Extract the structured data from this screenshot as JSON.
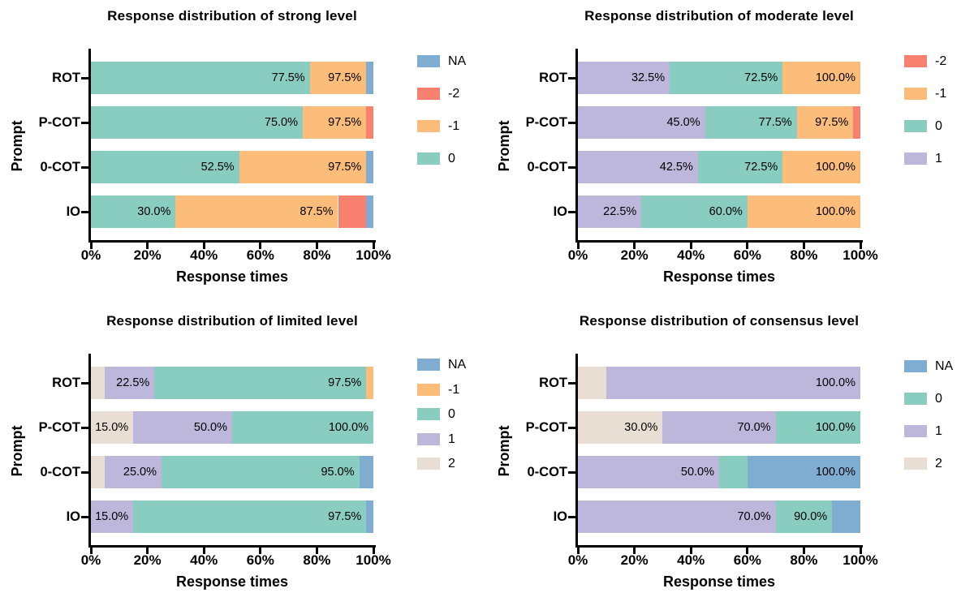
{
  "figure": {
    "background": "#ffffff",
    "text_color": "#000000",
    "axis_color": "#000000"
  },
  "colors": {
    "NA": "#7FACD1",
    "-2": "#F8806E",
    "-1": "#FCBD7B",
    "0": "#89CDC0",
    "1": "#BDB7DC",
    "2": "#E9DED3"
  },
  "chart_data": [
    {
      "type": "bar",
      "orientation": "horizontal",
      "stacked": true,
      "title": "Response distribution of strong level",
      "xlabel": "Response times",
      "ylabel": "Prompt",
      "xlim": [
        0,
        100
      ],
      "x_ticks": [
        "0%",
        "20%",
        "40%",
        "60%",
        "80%",
        "100%"
      ],
      "grid": false,
      "legend_position": "right",
      "legend": [
        "NA",
        "-2",
        "-1",
        "0"
      ],
      "categories": [
        "ROT",
        "P-COT",
        "0-COT",
        "IO"
      ],
      "rows": [
        {
          "category": "ROT",
          "segments": [
            {
              "series": "0",
              "start": 0,
              "end": 77.5,
              "label": "77.5%"
            },
            {
              "series": "-1",
              "start": 77.5,
              "end": 97.5,
              "label": "97.5%"
            },
            {
              "series": "NA",
              "start": 97.5,
              "end": 100
            }
          ]
        },
        {
          "category": "P-COT",
          "segments": [
            {
              "series": "0",
              "start": 0,
              "end": 75,
              "label": "75.0%"
            },
            {
              "series": "-1",
              "start": 75,
              "end": 97.5,
              "label": "97.5%"
            },
            {
              "series": "-2",
              "start": 97.5,
              "end": 100
            }
          ]
        },
        {
          "category": "0-COT",
          "segments": [
            {
              "series": "0",
              "start": 0,
              "end": 52.5,
              "label": "52.5%"
            },
            {
              "series": "-1",
              "start": 52.5,
              "end": 97.5,
              "label": "97.5%"
            },
            {
              "series": "NA",
              "start": 97.5,
              "end": 100
            }
          ]
        },
        {
          "category": "IO",
          "segments": [
            {
              "series": "0",
              "start": 0,
              "end": 30,
              "label": "30.0%"
            },
            {
              "series": "-1",
              "start": 30,
              "end": 87.5,
              "label": "87.5%"
            },
            {
              "series": "-2",
              "start": 87.5,
              "end": 97.5
            },
            {
              "series": "NA",
              "start": 97.5,
              "end": 100
            }
          ]
        }
      ]
    },
    {
      "type": "bar",
      "orientation": "horizontal",
      "stacked": true,
      "title": "Response distribution of moderate level",
      "xlabel": "Response times",
      "ylabel": "Prompt",
      "xlim": [
        0,
        100
      ],
      "x_ticks": [
        "0%",
        "20%",
        "40%",
        "60%",
        "80%",
        "100%"
      ],
      "grid": false,
      "legend_position": "right",
      "legend": [
        "-2",
        "-1",
        "0",
        "1"
      ],
      "categories": [
        "ROT",
        "P-COT",
        "0-COT",
        "IO"
      ],
      "rows": [
        {
          "category": "ROT",
          "segments": [
            {
              "series": "1",
              "start": 0,
              "end": 32.5,
              "label": "32.5%"
            },
            {
              "series": "0",
              "start": 32.5,
              "end": 72.5,
              "label": "72.5%"
            },
            {
              "series": "-1",
              "start": 72.5,
              "end": 100,
              "label": "100.0%"
            }
          ]
        },
        {
          "category": "P-COT",
          "segments": [
            {
              "series": "1",
              "start": 0,
              "end": 45,
              "label": "45.0%"
            },
            {
              "series": "0",
              "start": 45,
              "end": 77.5,
              "label": "77.5%"
            },
            {
              "series": "-1",
              "start": 77.5,
              "end": 97.5,
              "label": "97.5%"
            },
            {
              "series": "-2",
              "start": 97.5,
              "end": 100
            }
          ]
        },
        {
          "category": "0-COT",
          "segments": [
            {
              "series": "1",
              "start": 0,
              "end": 42.5,
              "label": "42.5%"
            },
            {
              "series": "0",
              "start": 42.5,
              "end": 72.5,
              "label": "72.5%"
            },
            {
              "series": "-1",
              "start": 72.5,
              "end": 100,
              "label": "100.0%"
            }
          ]
        },
        {
          "category": "IO",
          "segments": [
            {
              "series": "1",
              "start": 0,
              "end": 22.5,
              "label": "22.5%"
            },
            {
              "series": "0",
              "start": 22.5,
              "end": 60,
              "label": "60.0%"
            },
            {
              "series": "-1",
              "start": 60,
              "end": 100,
              "label": "100.0%"
            }
          ]
        }
      ]
    },
    {
      "type": "bar",
      "orientation": "horizontal",
      "stacked": true,
      "title": "Response distribution of limited level",
      "xlabel": "Response times",
      "ylabel": "Prompt",
      "xlim": [
        0,
        100
      ],
      "x_ticks": [
        "0%",
        "20%",
        "40%",
        "60%",
        "80%",
        "100%"
      ],
      "grid": false,
      "legend_position": "right",
      "legend": [
        "NA",
        "-1",
        "0",
        "1",
        "2"
      ],
      "categories": [
        "ROT",
        "P-COT",
        "0-COT",
        "IO"
      ],
      "rows": [
        {
          "category": "ROT",
          "segments": [
            {
              "series": "2",
              "start": 0,
              "end": 5
            },
            {
              "series": "1",
              "start": 5,
              "end": 22.5,
              "label": "22.5%"
            },
            {
              "series": "0",
              "start": 22.5,
              "end": 97.5,
              "label": "97.5%"
            },
            {
              "series": "-1",
              "start": 97.5,
              "end": 100
            }
          ]
        },
        {
          "category": "P-COT",
          "segments": [
            {
              "series": "2",
              "start": 0,
              "end": 15,
              "label": "15.0%"
            },
            {
              "series": "1",
              "start": 15,
              "end": 50,
              "label": "50.0%"
            },
            {
              "series": "0",
              "start": 50,
              "end": 100,
              "label": "100.0%"
            }
          ]
        },
        {
          "category": "0-COT",
          "segments": [
            {
              "series": "2",
              "start": 0,
              "end": 5
            },
            {
              "series": "1",
              "start": 5,
              "end": 25,
              "label": "25.0%"
            },
            {
              "series": "0",
              "start": 25,
              "end": 95,
              "label": "95.0%"
            },
            {
              "series": "NA",
              "start": 95,
              "end": 100
            }
          ]
        },
        {
          "category": "IO",
          "segments": [
            {
              "series": "1",
              "start": 0,
              "end": 15,
              "label": "15.0%"
            },
            {
              "series": "0",
              "start": 15,
              "end": 97.5,
              "label": "97.5%"
            },
            {
              "series": "NA",
              "start": 97.5,
              "end": 100
            }
          ]
        }
      ]
    },
    {
      "type": "bar",
      "orientation": "horizontal",
      "stacked": true,
      "title": "Response distribution of consensus level",
      "xlabel": "Response times",
      "ylabel": "Prompt",
      "xlim": [
        0,
        100
      ],
      "x_ticks": [
        "0%",
        "20%",
        "40%",
        "60%",
        "80%",
        "100%"
      ],
      "grid": false,
      "legend_position": "right",
      "legend": [
        "NA",
        "0",
        "1",
        "2"
      ],
      "categories": [
        "ROT",
        "P-COT",
        "0-COT",
        "IO"
      ],
      "rows": [
        {
          "category": "ROT",
          "segments": [
            {
              "series": "2",
              "start": 0,
              "end": 10
            },
            {
              "series": "1",
              "start": 10,
              "end": 100,
              "label": "100.0%"
            }
          ]
        },
        {
          "category": "P-COT",
          "segments": [
            {
              "series": "2",
              "start": 0,
              "end": 30,
              "label": "30.0%"
            },
            {
              "series": "1",
              "start": 30,
              "end": 70,
              "label": "70.0%"
            },
            {
              "series": "0",
              "start": 70,
              "end": 100,
              "label": "100.0%"
            }
          ]
        },
        {
          "category": "0-COT",
          "segments": [
            {
              "series": "1",
              "start": 0,
              "end": 50,
              "label": "50.0%"
            },
            {
              "series": "0",
              "start": 50,
              "end": 60
            },
            {
              "series": "NA",
              "start": 60,
              "end": 100,
              "label": "100.0%"
            }
          ]
        },
        {
          "category": "IO",
          "segments": [
            {
              "series": "1",
              "start": 0,
              "end": 70,
              "label": "70.0%"
            },
            {
              "series": "0",
              "start": 70,
              "end": 90,
              "label": "90.0%"
            },
            {
              "series": "NA",
              "start": 90,
              "end": 100
            }
          ]
        }
      ]
    }
  ]
}
